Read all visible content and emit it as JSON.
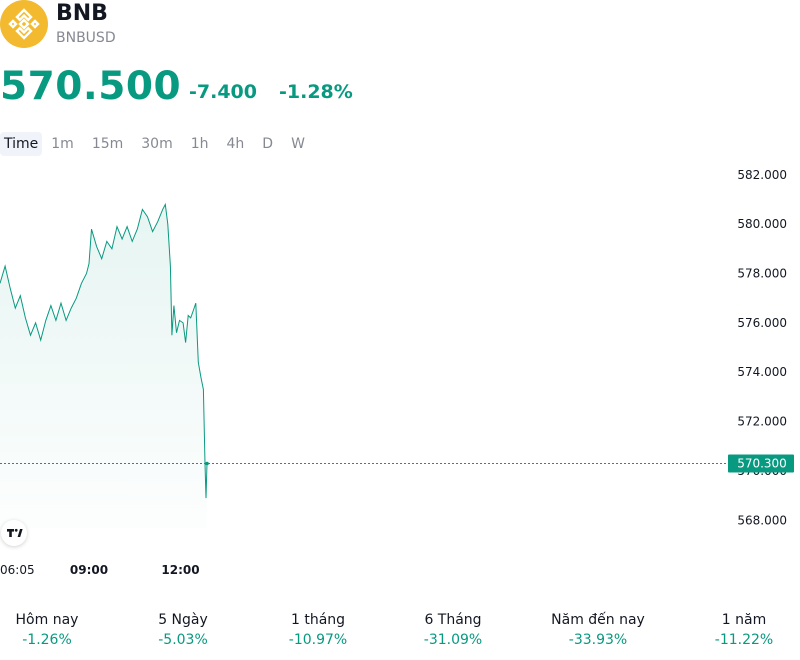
{
  "header": {
    "symbol": "BNB",
    "pair": "BNBUSD",
    "logo_icon": "binance-coin-icon",
    "logo_color": "#F3BA2F"
  },
  "quote": {
    "price": "570.500",
    "change": "-7.400",
    "change_percent": "-1.28%",
    "color": "#089981"
  },
  "intervals": [
    {
      "label": "Time",
      "active": true
    },
    {
      "label": "1m",
      "active": false
    },
    {
      "label": "15m",
      "active": false
    },
    {
      "label": "30m",
      "active": false
    },
    {
      "label": "1h",
      "active": false
    },
    {
      "label": "4h",
      "active": false
    },
    {
      "label": "D",
      "active": false
    },
    {
      "label": "W",
      "active": false
    }
  ],
  "chart_data": {
    "type": "area",
    "title": "",
    "xlabel": "",
    "ylabel": "",
    "x_ticks": [
      {
        "label": "06:05",
        "time": "06:05",
        "bold": false
      },
      {
        "label": "09:00",
        "time": "09:00",
        "bold": true
      },
      {
        "label": "12:00",
        "time": "12:00",
        "bold": true
      }
    ],
    "x_range": [
      "06:05",
      "23:59"
    ],
    "y_ticks": [
      "582.000",
      "580.000",
      "578.000",
      "576.000",
      "574.000",
      "572.000",
      "570.000",
      "568.000"
    ],
    "ylim": [
      567.2,
      582.6
    ],
    "last_price_label": "570.300",
    "last_price": 570.3,
    "grid": false,
    "series": [
      {
        "color": "#089981",
        "points": [
          [
            "06:05",
            577.6
          ],
          [
            "06:15",
            578.3
          ],
          [
            "06:25",
            577.4
          ],
          [
            "06:35",
            576.6
          ],
          [
            "06:45",
            577.1
          ],
          [
            "06:55",
            576.2
          ],
          [
            "07:05",
            575.5
          ],
          [
            "07:15",
            576.0
          ],
          [
            "07:25",
            575.3
          ],
          [
            "07:35",
            576.1
          ],
          [
            "07:45",
            576.7
          ],
          [
            "07:55",
            576.1
          ],
          [
            "08:05",
            576.8
          ],
          [
            "08:15",
            576.1
          ],
          [
            "08:25",
            576.6
          ],
          [
            "08:35",
            577.0
          ],
          [
            "08:45",
            577.6
          ],
          [
            "08:55",
            578.0
          ],
          [
            "09:00",
            578.4
          ],
          [
            "09:05",
            579.8
          ],
          [
            "09:15",
            579.1
          ],
          [
            "09:25",
            578.6
          ],
          [
            "09:35",
            579.3
          ],
          [
            "09:45",
            579.0
          ],
          [
            "09:55",
            579.9
          ],
          [
            "10:05",
            579.4
          ],
          [
            "10:15",
            579.9
          ],
          [
            "10:25",
            579.3
          ],
          [
            "10:35",
            579.8
          ],
          [
            "10:45",
            580.6
          ],
          [
            "10:55",
            580.3
          ],
          [
            "11:05",
            579.7
          ],
          [
            "11:15",
            580.1
          ],
          [
            "11:25",
            580.6
          ],
          [
            "11:30",
            580.8
          ],
          [
            "11:35",
            580.0
          ],
          [
            "11:40",
            578.3
          ],
          [
            "11:43",
            575.5
          ],
          [
            "11:47",
            576.7
          ],
          [
            "11:52",
            575.6
          ],
          [
            "11:58",
            576.1
          ],
          [
            "12:05",
            576.0
          ],
          [
            "12:10",
            575.2
          ],
          [
            "12:15",
            576.3
          ],
          [
            "12:20",
            576.2
          ],
          [
            "12:25",
            576.5
          ],
          [
            "12:30",
            576.8
          ],
          [
            "12:35",
            574.4
          ],
          [
            "12:40",
            573.8
          ],
          [
            "12:45",
            573.3
          ],
          [
            "12:48",
            570.3
          ],
          [
            "12:50",
            568.9
          ],
          [
            "12:52",
            570.3
          ]
        ]
      }
    ]
  },
  "performance": [
    {
      "label": "Hôm nay",
      "value": "-1.26%"
    },
    {
      "label": "5 Ngày",
      "value": "-5.03%"
    },
    {
      "label": "1 tháng",
      "value": "-10.97%"
    },
    {
      "label": "6 Tháng",
      "value": "-31.09%"
    },
    {
      "label": "Năm đến nay",
      "value": "-33.93%"
    },
    {
      "label": "1 năm",
      "value": "-11.22%"
    }
  ],
  "watermark_icon": "tradingview-logo-icon"
}
